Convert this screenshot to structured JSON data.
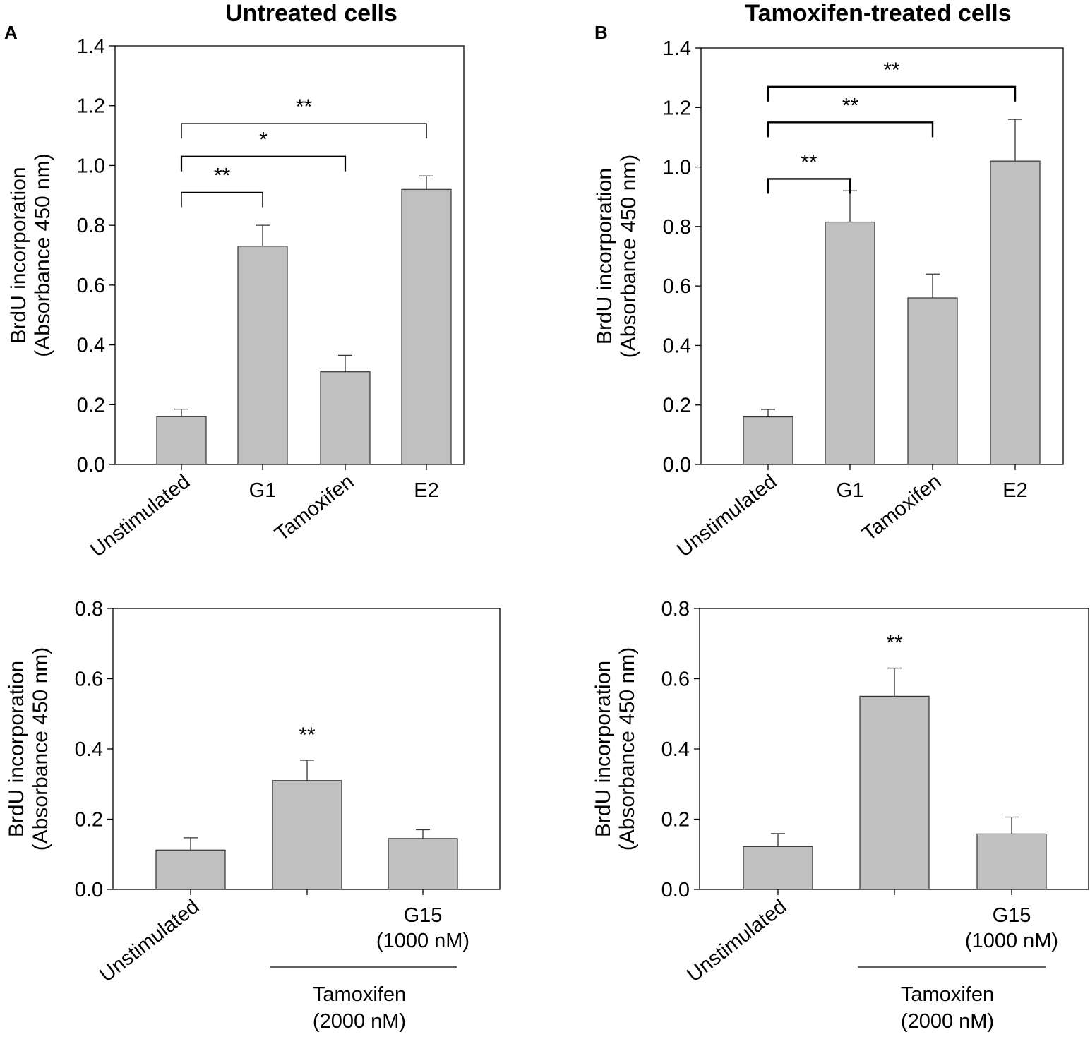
{
  "figure": {
    "columns": [
      {
        "letter": "A",
        "title": "Untreated cells"
      },
      {
        "letter": "B",
        "title": "Tamoxifen-treated cells"
      }
    ]
  },
  "chart_data": [
    {
      "id": "A_top",
      "panel": "A",
      "type": "bar",
      "ylabel": "BrdU  incorporation",
      "ylabel_sub": "(Absorbance 450 nm)",
      "ylim": [
        0,
        1.4
      ],
      "yticks": [
        0.0,
        0.2,
        0.4,
        0.6,
        0.8,
        1.0,
        1.2,
        1.4
      ],
      "categories": [
        "Unstimulated",
        "G1",
        "Tamoxifen",
        "E2"
      ],
      "rotated": [
        true,
        false,
        true,
        false
      ],
      "values": [
        0.16,
        0.73,
        0.31,
        0.92
      ],
      "errors": [
        0.025,
        0.07,
        0.055,
        0.045
      ],
      "comparisons": [
        {
          "from": 0,
          "to": 1,
          "label": "**",
          "y": 0.91
        },
        {
          "from": 0,
          "to": 2,
          "label": "*",
          "y": 1.03
        },
        {
          "from": 0,
          "to": 3,
          "label": "**",
          "y": 1.14
        }
      ]
    },
    {
      "id": "B_top",
      "panel": "B",
      "type": "bar",
      "ylabel": "BrdU  incorporation",
      "ylabel_sub": "(Absorbance 450 nm)",
      "ylim": [
        0,
        1.4
      ],
      "yticks": [
        0.0,
        0.2,
        0.4,
        0.6,
        0.8,
        1.0,
        1.2,
        1.4
      ],
      "categories": [
        "Unstimulated",
        "G1",
        "Tamoxifen",
        "E2"
      ],
      "rotated": [
        true,
        false,
        true,
        false
      ],
      "values": [
        0.16,
        0.815,
        0.56,
        1.02
      ],
      "errors": [
        0.025,
        0.105,
        0.08,
        0.14
      ],
      "comparisons": [
        {
          "from": 0,
          "to": 1,
          "label": "**",
          "y": 0.96
        },
        {
          "from": 0,
          "to": 2,
          "label": "**",
          "y": 1.15
        },
        {
          "from": 0,
          "to": 3,
          "label": "**",
          "y": 1.27
        }
      ]
    },
    {
      "id": "A_bottom",
      "panel": "A",
      "type": "bar",
      "ylabel": "BrdU  incorporation",
      "ylabel_sub": "(Absorbance 450 nm)",
      "ylim": [
        0,
        0.8
      ],
      "yticks": [
        0.0,
        0.2,
        0.4,
        0.6,
        0.8
      ],
      "categories": [
        "Unstimulated",
        "",
        "G15\n(1000 nM)"
      ],
      "rotated": [
        true,
        false,
        false
      ],
      "values": [
        0.112,
        0.31,
        0.145
      ],
      "errors": [
        0.035,
        0.058,
        0.025
      ],
      "bar_labels": [
        "",
        "**",
        ""
      ],
      "group": {
        "label": "Tamoxifen",
        "sublabel": "(2000 nM)",
        "from": 1,
        "to": 2
      }
    },
    {
      "id": "B_bottom",
      "panel": "B",
      "type": "bar",
      "ylabel": "BrdU  incorporation",
      "ylabel_sub": "(Absorbance 450 nm)",
      "ylim": [
        0,
        0.8
      ],
      "yticks": [
        0.0,
        0.2,
        0.4,
        0.6,
        0.8
      ],
      "categories": [
        "Unstimulated",
        "",
        "G15\n(1000 nM)"
      ],
      "rotated": [
        true,
        false,
        false
      ],
      "values": [
        0.122,
        0.55,
        0.158
      ],
      "errors": [
        0.037,
        0.08,
        0.048
      ],
      "bar_labels": [
        "",
        "**",
        ""
      ],
      "group": {
        "label": "Tamoxifen",
        "sublabel": "(2000 nM)",
        "from": 1,
        "to": 2
      }
    }
  ]
}
